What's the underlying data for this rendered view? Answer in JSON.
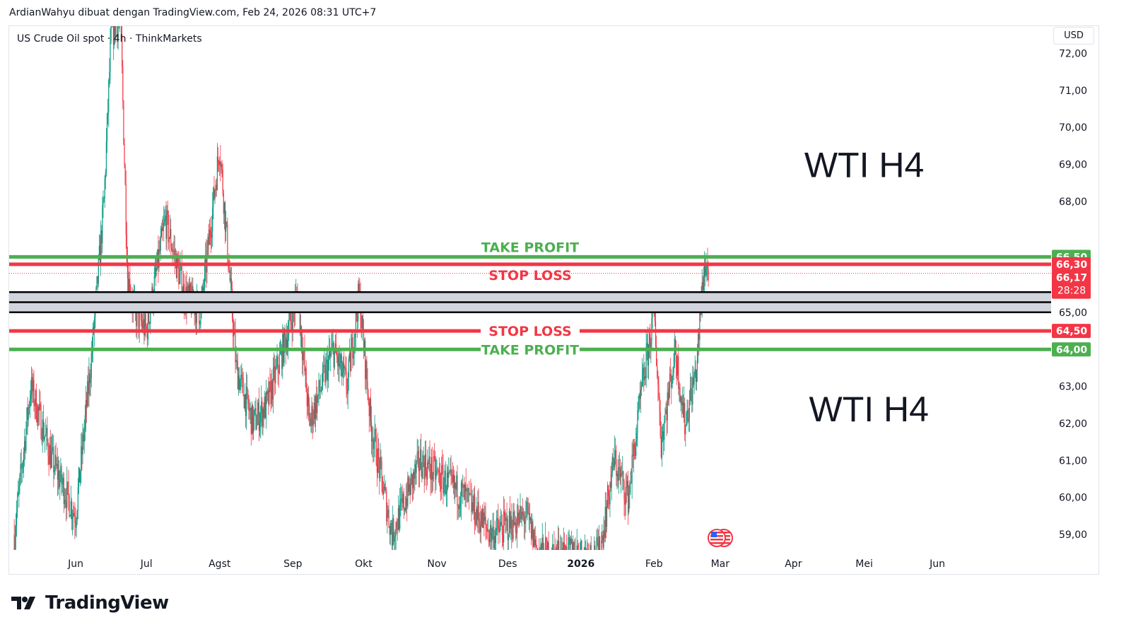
{
  "header": {
    "credit": "ArdianWahyu dibuat dengan TradingView.com, Feb 24, 2026 08:31 UTC+7",
    "legend": "US Crude Oil spot · 4h · ThinkMarkets",
    "currency_button": "USD"
  },
  "footer": {
    "logo_text": "TradingView"
  },
  "colors": {
    "up": "#089981",
    "down": "#f23645",
    "take_profit": "#4caf50",
    "stop_loss": "#f23645",
    "zone": "#d1d4dc",
    "zone_border": "#000000"
  },
  "chart_data": {
    "type": "candlestick",
    "title": "",
    "ylim": [
      58.6,
      72.8
    ],
    "y_ticks": [
      {
        "value": 59,
        "label": "59,00"
      },
      {
        "value": 60,
        "label": "60,00"
      },
      {
        "value": 61,
        "label": "61,00"
      },
      {
        "value": 62,
        "label": "62,00"
      },
      {
        "value": 63,
        "label": "63,00"
      },
      {
        "value": 65,
        "label": "65,00"
      },
      {
        "value": 68,
        "label": "68,00"
      },
      {
        "value": 69,
        "label": "69,00"
      },
      {
        "value": 70,
        "label": "70,00"
      },
      {
        "value": 71,
        "label": "71,00"
      },
      {
        "value": 72,
        "label": "72,00"
      }
    ],
    "x_ticks": [
      {
        "date": "2025-06-01",
        "label": "Jun"
      },
      {
        "date": "2025-07-01",
        "label": "Jul"
      },
      {
        "date": "2025-08-01",
        "label": "Agst"
      },
      {
        "date": "2025-09-01",
        "label": "Sep"
      },
      {
        "date": "2025-10-01",
        "label": "Okt"
      },
      {
        "date": "2025-11-01",
        "label": "Nov"
      },
      {
        "date": "2025-12-01",
        "label": "Des"
      },
      {
        "date": "2026-01-01",
        "label": "2026",
        "bold": true
      },
      {
        "date": "2026-02-01",
        "label": "Feb"
      },
      {
        "date": "2026-03-01",
        "label": "Mar"
      },
      {
        "date": "2026-04-01",
        "label": "Apr"
      },
      {
        "date": "2026-05-01",
        "label": "Mei"
      },
      {
        "date": "2026-06-01",
        "label": "Jun"
      }
    ],
    "price_path": [
      [
        "2025-05-06",
        59.0
      ],
      [
        "2025-05-13",
        63.0
      ],
      [
        "2025-05-22",
        61.0
      ],
      [
        "2025-06-01",
        59.5
      ],
      [
        "2025-06-08",
        64.0
      ],
      [
        "2025-06-13",
        68.0
      ],
      [
        "2025-06-16",
        72.5
      ],
      [
        "2025-06-20",
        73.0
      ],
      [
        "2025-06-23",
        66.0
      ],
      [
        "2025-06-26",
        65.0
      ],
      [
        "2025-07-01",
        64.5
      ],
      [
        "2025-07-09",
        67.5
      ],
      [
        "2025-07-17",
        65.5
      ],
      [
        "2025-07-24",
        65.0
      ],
      [
        "2025-08-01",
        69.5
      ],
      [
        "2025-08-04",
        67.0
      ],
      [
        "2025-08-08",
        63.5
      ],
      [
        "2025-08-15",
        62.0
      ],
      [
        "2025-08-21",
        62.5
      ],
      [
        "2025-08-30",
        64.5
      ],
      [
        "2025-09-03",
        65.5
      ],
      [
        "2025-09-08",
        62.0
      ],
      [
        "2025-09-18",
        64.0
      ],
      [
        "2025-09-24",
        63.0
      ],
      [
        "2025-09-29",
        65.5
      ],
      [
        "2025-10-04",
        62.0
      ],
      [
        "2025-10-13",
        59.0
      ],
      [
        "2025-10-25",
        61.0
      ],
      [
        "2025-11-03",
        60.5
      ],
      [
        "2025-11-13",
        60.0
      ],
      [
        "2025-11-24",
        59.0
      ],
      [
        "2025-12-09",
        59.5
      ],
      [
        "2025-12-14",
        58.5
      ],
      [
        "2026-01-09",
        58.5
      ],
      [
        "2026-01-15",
        61.0
      ],
      [
        "2026-01-21",
        60.0
      ],
      [
        "2026-01-27",
        63.0
      ],
      [
        "2026-02-01",
        65.0
      ],
      [
        "2026-02-04",
        61.5
      ],
      [
        "2026-02-10",
        64.0
      ],
      [
        "2026-02-14",
        62.0
      ],
      [
        "2026-02-19",
        63.5
      ],
      [
        "2026-02-22",
        66.2
      ],
      [
        "2026-02-24",
        66.17
      ]
    ],
    "zone": {
      "low": 65.08,
      "high": 65.47
    },
    "levels": [
      {
        "name": "take-profit-upper",
        "price": 66.5,
        "label": "TAKE PROFIT",
        "axis_label": "66,50",
        "type": "tp"
      },
      {
        "name": "stop-loss-upper",
        "price": 66.3,
        "label": "STOP LOSS",
        "axis_label": "66,30",
        "type": "sl"
      },
      {
        "name": "stop-loss-lower",
        "price": 64.5,
        "label": "STOP LOSS",
        "axis_label": "64,50",
        "type": "sl"
      },
      {
        "name": "take-profit-lower",
        "price": 64.0,
        "label": "TAKE PROFIT",
        "axis_label": "64,00",
        "type": "tp"
      }
    ],
    "current_price": {
      "price": 66.17,
      "label": "66,17",
      "countdown": "28:28"
    },
    "annotations": [
      {
        "text": "WTI H4",
        "price": 69.0,
        "date": "2026-05-01"
      },
      {
        "text": "WTI H4",
        "price": 62.4,
        "date": "2026-05-03"
      }
    ]
  }
}
